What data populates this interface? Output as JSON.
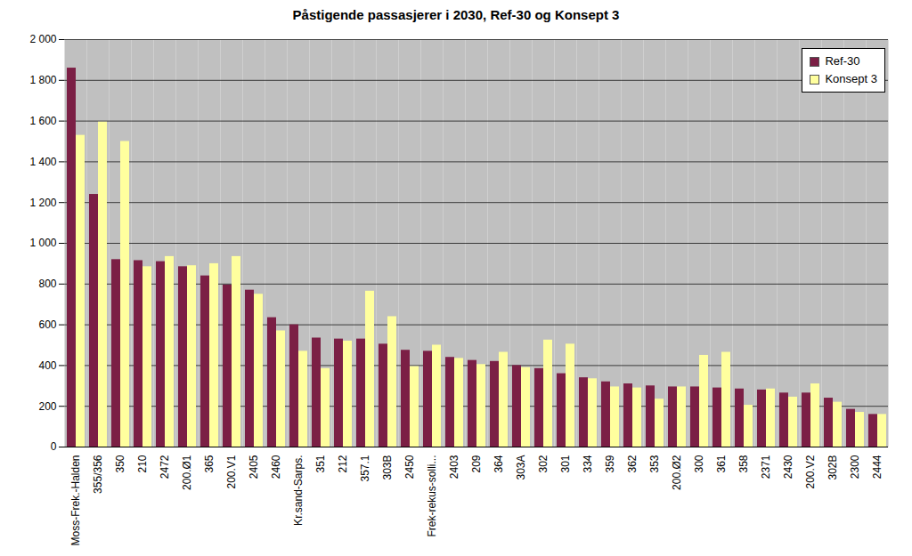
{
  "chart_data": {
    "type": "bar",
    "title": "Påstigende passasjerer i 2030, Ref-30 og Konsept 3",
    "categories": [
      "Moss-Frek.-Halden",
      "355/356",
      "350",
      "210",
      "2472",
      "200.Ø1",
      "365",
      "200.V1",
      "2405",
      "2460",
      "Kr.sand-Sarps.",
      "351",
      "212",
      "357.1",
      "303B",
      "2450",
      "Frek-rekus-solli...",
      "2403",
      "209",
      "364",
      "303A",
      "302",
      "301",
      "334",
      "359",
      "362",
      "353",
      "200.Ø2",
      "300",
      "361",
      "358",
      "2371",
      "2430",
      "200.V2",
      "302B",
      "2300",
      "2444"
    ],
    "series": [
      {
        "name": "Ref-30",
        "color": "#7b1f45",
        "values": [
          1860,
          1240,
          920,
          915,
          910,
          885,
          840,
          795,
          770,
          635,
          600,
          535,
          530,
          530,
          505,
          475,
          470,
          440,
          425,
          420,
          400,
          385,
          360,
          340,
          320,
          310,
          300,
          295,
          295,
          290,
          285,
          280,
          265,
          265,
          240,
          185,
          160
        ]
      },
      {
        "name": "Konsept 3",
        "color": "#ffff9e",
        "values": [
          1530,
          1595,
          1500,
          885,
          935,
          890,
          900,
          935,
          750,
          570,
          470,
          385,
          520,
          765,
          640,
          395,
          500,
          435,
          405,
          465,
          390,
          525,
          505,
          335,
          295,
          290,
          235,
          295,
          450,
          465,
          205,
          285,
          245,
          310,
          220,
          170,
          160
        ]
      }
    ],
    "ylim": [
      0,
      2000
    ],
    "yticks": [
      0,
      200,
      400,
      600,
      800,
      {
        "value": 1000,
        "label": "1 000"
      },
      {
        "value": 1200,
        "label": "1 200"
      },
      {
        "value": 1400,
        "label": "1 400"
      },
      {
        "value": 1600,
        "label": "1 600"
      },
      {
        "value": 1800,
        "label": "1 800"
      },
      {
        "value": 2000,
        "label": "2 000"
      }
    ],
    "grid": true,
    "legend": "upper right"
  }
}
